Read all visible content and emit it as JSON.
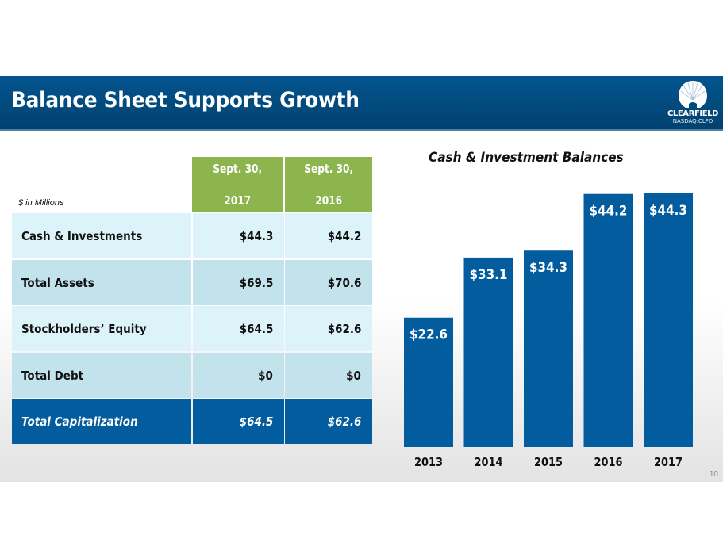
{
  "header": {
    "title": "Balance Sheet Supports Growth",
    "logo_name": "CLEARFIELD",
    "logo_ticker": "NASDAQ:CLFD"
  },
  "table": {
    "units_note": "$ in Millions",
    "columns": [
      "Sept. 30, 2017",
      "Sept. 30, 2016"
    ],
    "column_lines": [
      [
        "Sept. 30,",
        "2017"
      ],
      [
        "Sept. 30,",
        "2016"
      ]
    ],
    "rows": [
      {
        "label": "Cash & Investments",
        "v2017": "$44.3",
        "v2016": "$44.2"
      },
      {
        "label": "Total Assets",
        "v2017": "$69.5",
        "v2016": "$70.6"
      },
      {
        "label": "Stockholders’ Equity",
        "v2017": "$64.5",
        "v2016": "$62.6"
      },
      {
        "label": "Total Debt",
        "v2017": "$0",
        "v2016": "$0"
      },
      {
        "label": "Total Capitalization",
        "v2017": "$64.5",
        "v2016": "$62.6"
      }
    ]
  },
  "chart_data": {
    "type": "bar",
    "title": "Cash & Investment Balances",
    "categories": [
      "2013",
      "2014",
      "2015",
      "2016",
      "2017"
    ],
    "values": [
      22.6,
      33.1,
      34.3,
      44.2,
      44.3
    ],
    "data_labels": [
      "$22.6",
      "$33.1",
      "$34.3",
      "$44.2",
      "$44.3"
    ],
    "xlabel": "",
    "ylabel": "",
    "ylim": [
      0,
      44.3
    ],
    "grid": false,
    "legend": "none",
    "bar_color": "#035c9d",
    "label_color": "#ffffff"
  },
  "colors": {
    "header_bg": "#03558f",
    "table_header_bg": "#8db54d",
    "row_light": "#dcf3f9",
    "row_dark": "#c2e2ec",
    "total_row_bg": "#035c9d"
  },
  "footer": {
    "page_number": "10"
  }
}
